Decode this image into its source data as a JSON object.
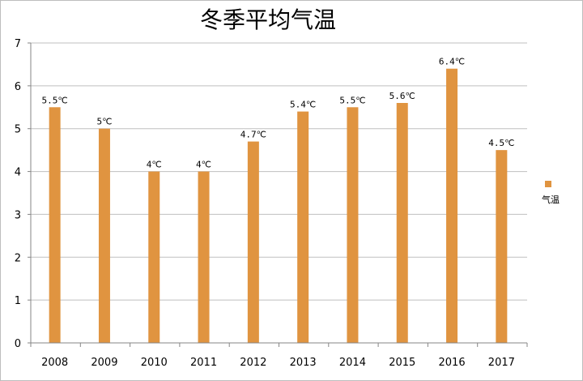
{
  "colors": {
    "bar": "#E09440",
    "grid": "#bfbfbf",
    "axis": "#868686",
    "text": "#000000"
  },
  "chart_data": {
    "type": "bar",
    "title": "冬季平均气温",
    "categories": [
      "2008",
      "2009",
      "2010",
      "2011",
      "2012",
      "2013",
      "2014",
      "2015",
      "2016",
      "2017"
    ],
    "series": [
      {
        "name": "气温",
        "values": [
          5.5,
          5,
          4,
          4,
          4.7,
          5.4,
          5.5,
          5.6,
          6.4,
          4.5
        ]
      }
    ],
    "data_labels": [
      "5.5℃",
      "5℃",
      "4℃",
      "4℃",
      "4.7℃",
      "5.4℃",
      "5.5℃",
      "5.6℃",
      "6.4℃",
      "4.5℃"
    ],
    "y_ticks": [
      "0",
      "1",
      "2",
      "3",
      "4",
      "5",
      "6",
      "7"
    ],
    "ylim": [
      0,
      7
    ],
    "grid": true,
    "legend_position": "right"
  }
}
